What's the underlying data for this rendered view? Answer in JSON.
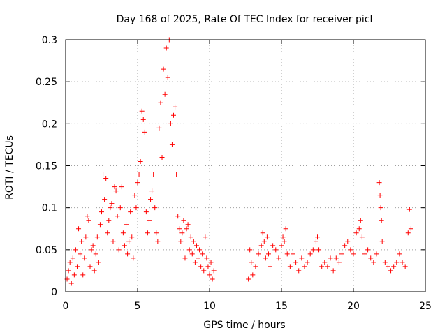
{
  "chart_data": {
    "type": "scatter",
    "title": "Day 168 of 2025, Rate Of TEC Index for receiver picl",
    "xlabel": "GPS time / hours",
    "ylabel": "ROTI / TECUs",
    "xlim": [
      0,
      25
    ],
    "ylim": [
      0,
      0.3
    ],
    "xticks": [
      0,
      5,
      10,
      15,
      20,
      25
    ],
    "xtick_labels": [
      "0",
      "5",
      "10",
      "15",
      "20",
      "25"
    ],
    "yticks": [
      0,
      0.05,
      0.1,
      0.15,
      0.2,
      0.25,
      0.3
    ],
    "ytick_labels": [
      "0",
      "0.05",
      "0.1",
      "0.15",
      "0.2",
      "0.25",
      "0.3"
    ],
    "grid": true,
    "marker": "+",
    "color": "#ff0000",
    "data_gap_hours": [
      10.4,
      12.6
    ],
    "series": [
      {
        "name": "ROTI",
        "points": [
          [
            0.1,
            0.015
          ],
          [
            0.2,
            0.025
          ],
          [
            0.3,
            0.035
          ],
          [
            0.4,
            0.01
          ],
          [
            0.5,
            0.04
          ],
          [
            0.6,
            0.02
          ],
          [
            0.7,
            0.05
          ],
          [
            0.8,
            0.03
          ],
          [
            0.9,
            0.075
          ],
          [
            1.0,
            0.045
          ],
          [
            1.1,
            0.06
          ],
          [
            1.2,
            0.02
          ],
          [
            1.3,
            0.04
          ],
          [
            1.4,
            0.065
          ],
          [
            1.5,
            0.09
          ],
          [
            1.6,
            0.085
          ],
          [
            1.7,
            0.03
          ],
          [
            1.8,
            0.05
          ],
          [
            1.9,
            0.055
          ],
          [
            2.0,
            0.025
          ],
          [
            2.1,
            0.045
          ],
          [
            2.2,
            0.065
          ],
          [
            2.3,
            0.035
          ],
          [
            2.4,
            0.08
          ],
          [
            2.5,
            0.095
          ],
          [
            2.6,
            0.14
          ],
          [
            2.7,
            0.11
          ],
          [
            2.8,
            0.135
          ],
          [
            2.9,
            0.07
          ],
          [
            3.0,
            0.085
          ],
          [
            3.1,
            0.1
          ],
          [
            3.2,
            0.105
          ],
          [
            3.3,
            0.06
          ],
          [
            3.4,
            0.125
          ],
          [
            3.5,
            0.12
          ],
          [
            3.6,
            0.09
          ],
          [
            3.7,
            0.05
          ],
          [
            3.8,
            0.1
          ],
          [
            3.9,
            0.125
          ],
          [
            4.0,
            0.07
          ],
          [
            4.1,
            0.055
          ],
          [
            4.2,
            0.08
          ],
          [
            4.3,
            0.045
          ],
          [
            4.4,
            0.06
          ],
          [
            4.5,
            0.095
          ],
          [
            4.6,
            0.065
          ],
          [
            4.7,
            0.04
          ],
          [
            4.8,
            0.115
          ],
          [
            4.9,
            0.1
          ],
          [
            5.0,
            0.13
          ],
          [
            5.1,
            0.14
          ],
          [
            5.2,
            0.155
          ],
          [
            5.3,
            0.215
          ],
          [
            5.4,
            0.205
          ],
          [
            5.5,
            0.19
          ],
          [
            5.6,
            0.095
          ],
          [
            5.7,
            0.07
          ],
          [
            5.8,
            0.085
          ],
          [
            5.9,
            0.11
          ],
          [
            6.0,
            0.12
          ],
          [
            6.1,
            0.14
          ],
          [
            6.2,
            0.1
          ],
          [
            6.3,
            0.07
          ],
          [
            6.4,
            0.06
          ],
          [
            6.5,
            0.195
          ],
          [
            6.6,
            0.225
          ],
          [
            6.7,
            0.16
          ],
          [
            6.8,
            0.265
          ],
          [
            6.9,
            0.235
          ],
          [
            7.0,
            0.29
          ],
          [
            7.1,
            0.255
          ],
          [
            7.2,
            0.3
          ],
          [
            7.3,
            0.2
          ],
          [
            7.4,
            0.175
          ],
          [
            7.5,
            0.21
          ],
          [
            7.6,
            0.22
          ],
          [
            7.7,
            0.14
          ],
          [
            7.8,
            0.09
          ],
          [
            7.9,
            0.075
          ],
          [
            8.0,
            0.06
          ],
          [
            8.1,
            0.07
          ],
          [
            8.2,
            0.085
          ],
          [
            8.3,
            0.04
          ],
          [
            8.4,
            0.075
          ],
          [
            8.5,
            0.08
          ],
          [
            8.6,
            0.05
          ],
          [
            8.7,
            0.065
          ],
          [
            8.8,
            0.045
          ],
          [
            8.9,
            0.06
          ],
          [
            9.0,
            0.035
          ],
          [
            9.1,
            0.055
          ],
          [
            9.2,
            0.04
          ],
          [
            9.3,
            0.05
          ],
          [
            9.4,
            0.03
          ],
          [
            9.5,
            0.045
          ],
          [
            9.6,
            0.025
          ],
          [
            9.7,
            0.065
          ],
          [
            9.8,
            0.04
          ],
          [
            9.9,
            0.03
          ],
          [
            10.0,
            0.02
          ],
          [
            10.1,
            0.035
          ],
          [
            10.2,
            0.015
          ],
          [
            10.3,
            0.025
          ],
          [
            12.7,
            0.015
          ],
          [
            12.8,
            0.05
          ],
          [
            12.9,
            0.035
          ],
          [
            13.0,
            0.02
          ],
          [
            13.2,
            0.03
          ],
          [
            13.4,
            0.045
          ],
          [
            13.6,
            0.055
          ],
          [
            13.7,
            0.07
          ],
          [
            13.8,
            0.06
          ],
          [
            13.9,
            0.04
          ],
          [
            14.0,
            0.065
          ],
          [
            14.1,
            0.045
          ],
          [
            14.2,
            0.03
          ],
          [
            14.4,
            0.055
          ],
          [
            14.6,
            0.05
          ],
          [
            14.8,
            0.04
          ],
          [
            15.0,
            0.055
          ],
          [
            15.1,
            0.065
          ],
          [
            15.2,
            0.06
          ],
          [
            15.3,
            0.075
          ],
          [
            15.4,
            0.045
          ],
          [
            15.6,
            0.03
          ],
          [
            15.8,
            0.045
          ],
          [
            16.0,
            0.035
          ],
          [
            16.2,
            0.025
          ],
          [
            16.4,
            0.04
          ],
          [
            16.6,
            0.03
          ],
          [
            16.8,
            0.035
          ],
          [
            17.0,
            0.045
          ],
          [
            17.2,
            0.05
          ],
          [
            17.4,
            0.06
          ],
          [
            17.5,
            0.065
          ],
          [
            17.6,
            0.05
          ],
          [
            17.8,
            0.03
          ],
          [
            18.0,
            0.035
          ],
          [
            18.2,
            0.03
          ],
          [
            18.4,
            0.04
          ],
          [
            18.6,
            0.025
          ],
          [
            18.8,
            0.04
          ],
          [
            19.0,
            0.035
          ],
          [
            19.2,
            0.045
          ],
          [
            19.4,
            0.055
          ],
          [
            19.6,
            0.06
          ],
          [
            19.8,
            0.05
          ],
          [
            20.0,
            0.045
          ],
          [
            20.2,
            0.07
          ],
          [
            20.4,
            0.075
          ],
          [
            20.5,
            0.085
          ],
          [
            20.6,
            0.065
          ],
          [
            20.8,
            0.045
          ],
          [
            21.0,
            0.05
          ],
          [
            21.2,
            0.04
          ],
          [
            21.4,
            0.035
          ],
          [
            21.6,
            0.045
          ],
          [
            21.8,
            0.13
          ],
          [
            21.85,
            0.115
          ],
          [
            21.9,
            0.1
          ],
          [
            21.95,
            0.085
          ],
          [
            22.0,
            0.06
          ],
          [
            22.2,
            0.035
          ],
          [
            22.4,
            0.03
          ],
          [
            22.6,
            0.025
          ],
          [
            22.8,
            0.03
          ],
          [
            23.0,
            0.035
          ],
          [
            23.2,
            0.045
          ],
          [
            23.4,
            0.035
          ],
          [
            23.6,
            0.03
          ],
          [
            23.8,
            0.07
          ],
          [
            23.9,
            0.098
          ],
          [
            24.0,
            0.075
          ]
        ]
      }
    ]
  }
}
